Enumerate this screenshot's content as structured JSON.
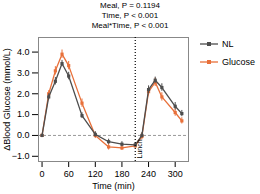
{
  "chart_data": {
    "type": "line",
    "title": "Meal, P = 0.1194\nTime, P < 0.001\nMeal*Time, P < 0.001",
    "xlabel": "Time (min)",
    "ylabel": "ΔBlood Glucose (mmol/L)",
    "x": [
      0,
      15,
      30,
      45,
      60,
      90,
      120,
      150,
      180,
      210,
      225,
      240,
      255,
      270,
      300,
      315
    ],
    "series": [
      {
        "name": "NL",
        "color": "#4d4d4d",
        "values": [
          0,
          1.85,
          2.6,
          3.45,
          2.85,
          0.95,
          0.05,
          -0.3,
          -0.42,
          -0.45,
          0.0,
          2.2,
          2.65,
          2.3,
          1.4,
          1.05
        ],
        "errors": [
          0.05,
          0.15,
          0.18,
          0.15,
          0.18,
          0.14,
          0.13,
          0.12,
          0.12,
          0.1,
          0.13,
          0.18,
          0.15,
          0.18,
          0.18,
          0.15
        ]
      },
      {
        "name": "Glucose",
        "color": "#E8703A",
        "values": [
          0,
          2.0,
          3.1,
          3.9,
          3.35,
          1.55,
          0.0,
          -0.55,
          -0.6,
          -0.5,
          -0.05,
          2.1,
          2.55,
          1.85,
          1.1,
          0.7
        ],
        "errors": [
          0.05,
          0.15,
          0.2,
          0.2,
          0.2,
          0.2,
          0.15,
          0.15,
          0.12,
          0.12,
          0.16,
          0.2,
          0.2,
          0.2,
          0.18,
          0.15
        ]
      }
    ],
    "annotations": [
      {
        "type": "hline",
        "y": 0
      },
      {
        "type": "vline",
        "x": 210,
        "label": "Lunch"
      }
    ],
    "xlim": [
      -8,
      330
    ],
    "ylim": [
      -1.25,
      4.7
    ],
    "xticks": [
      0,
      60,
      120,
      180,
      240,
      300
    ],
    "yticks": [
      -1,
      0,
      1,
      2,
      3,
      4
    ],
    "marker": "square",
    "line_style": "solid",
    "grid": false,
    "legend": "right"
  }
}
